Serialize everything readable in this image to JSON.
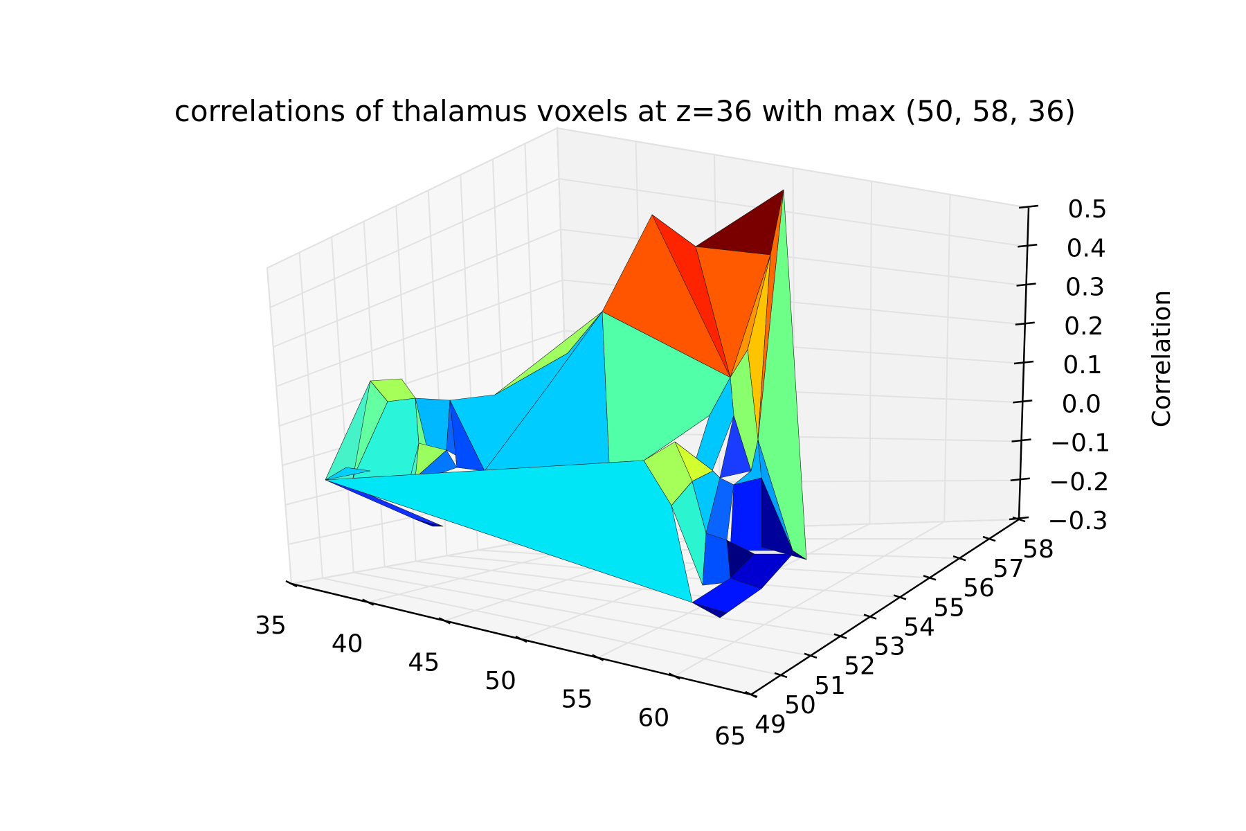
{
  "chart_data": {
    "type": "surface3d",
    "title": "correlations of thalamus voxels at z=36 with max (50, 58, 36)",
    "xlabel": "",
    "ylabel": "",
    "zlabel": "Correlation",
    "xlim": [
      35,
      65
    ],
    "ylim": [
      49,
      58
    ],
    "zlim": [
      -0.3,
      0.5
    ],
    "x_ticks": [
      "35",
      "40",
      "45",
      "50",
      "55",
      "60",
      "65"
    ],
    "y_ticks": [
      "49",
      "50",
      "51",
      "52",
      "53",
      "54",
      "55",
      "56",
      "57",
      "58"
    ],
    "z_ticks": [
      "0.5",
      "0.4",
      "0.3",
      "0.2",
      "0.1",
      "0.0",
      "−0.1",
      "−0.2",
      "−0.3"
    ],
    "colormap": "jet",
    "grid": true,
    "max_point": {
      "x": 50,
      "y": 58,
      "correlation": 0.5
    },
    "colors": {
      "pane": "#f2f2f2",
      "pane_left": "#f7f7f7",
      "pane_floor": "#f5f5f5",
      "grid": "#e2e2e2",
      "axis": "#000000"
    }
  }
}
